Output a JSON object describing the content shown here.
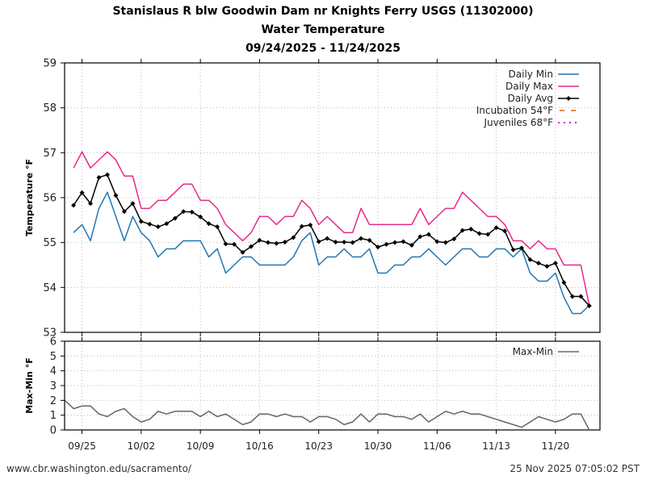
{
  "header": {
    "title_line1": "Stanislaus R blw Goodwin Dam nr Knights Ferry USGS (11302000)",
    "title_line2": "Water Temperature",
    "title_line3": "09/24/2025 - 11/24/2025"
  },
  "footer": {
    "source_url": "www.cbr.washington.edu/sacramento/",
    "timestamp": "25 Nov 2025 07:05:02 PST"
  },
  "colors": {
    "daily_min": "#1f77b4",
    "daily_max": "#e7298a",
    "daily_avg": "#000000",
    "incubation": "#e66101",
    "juveniles": "#c51bce",
    "max_min": "#666666"
  },
  "chart_data": [
    {
      "type": "line",
      "title": "Water Temperature",
      "xlabel": "",
      "ylabel": "Temperature °F",
      "ylim": [
        53,
        59
      ],
      "yticks": [
        "53",
        "54",
        "55",
        "56",
        "57",
        "58",
        "59"
      ],
      "xticks": [
        "09/25",
        "10/02",
        "10/09",
        "10/16",
        "10/23",
        "10/30",
        "11/06",
        "11/13",
        "11/20"
      ],
      "grid": true,
      "legend_position": "top-right",
      "x": [
        "09/24",
        "09/25",
        "09/26",
        "09/27",
        "09/28",
        "09/29",
        "09/30",
        "10/01",
        "10/02",
        "10/03",
        "10/04",
        "10/05",
        "10/06",
        "10/07",
        "10/08",
        "10/09",
        "10/10",
        "10/11",
        "10/12",
        "10/13",
        "10/14",
        "10/15",
        "10/16",
        "10/17",
        "10/18",
        "10/19",
        "10/20",
        "10/21",
        "10/22",
        "10/23",
        "10/24",
        "10/25",
        "10/26",
        "10/27",
        "10/28",
        "10/29",
        "10/30",
        "10/31",
        "11/01",
        "11/02",
        "11/03",
        "11/04",
        "11/05",
        "11/06",
        "11/07",
        "11/08",
        "11/09",
        "11/10",
        "11/11",
        "11/12",
        "11/13",
        "11/14",
        "11/15",
        "11/16",
        "11/17",
        "11/18",
        "11/19",
        "11/20",
        "11/21",
        "11/22",
        "11/23",
        "11/24"
      ],
      "series": [
        {
          "name": "Daily Min",
          "style": "solid",
          "values": [
            55.22,
            55.4,
            55.04,
            55.76,
            56.12,
            55.58,
            55.04,
            55.58,
            55.22,
            55.04,
            54.68,
            54.86,
            54.86,
            55.04,
            55.04,
            55.04,
            54.68,
            54.86,
            54.32,
            54.5,
            54.68,
            54.68,
            54.5,
            54.5,
            54.5,
            54.5,
            54.68,
            55.04,
            55.22,
            54.5,
            54.68,
            54.68,
            54.86,
            54.68,
            54.68,
            54.86,
            54.32,
            54.32,
            54.5,
            54.5,
            54.68,
            54.68,
            54.86,
            54.68,
            54.5,
            54.68,
            54.86,
            54.86,
            54.68,
            54.68,
            54.86,
            54.86,
            54.68,
            54.86,
            54.32,
            54.14,
            54.14,
            54.32,
            53.78,
            53.42,
            53.42,
            53.6
          ]
        },
        {
          "name": "Daily Max",
          "style": "solid",
          "values": [
            56.66,
            57.02,
            56.66,
            56.84,
            57.02,
            56.84,
            56.48,
            56.48,
            55.76,
            55.76,
            55.94,
            55.94,
            56.12,
            56.3,
            56.3,
            55.94,
            55.94,
            55.76,
            55.4,
            55.22,
            55.04,
            55.22,
            55.58,
            55.58,
            55.4,
            55.58,
            55.58,
            55.94,
            55.76,
            55.4,
            55.58,
            55.4,
            55.22,
            55.22,
            55.76,
            55.4,
            55.4,
            55.4,
            55.4,
            55.4,
            55.4,
            55.76,
            55.4,
            55.58,
            55.76,
            55.76,
            56.12,
            55.94,
            55.76,
            55.58,
            55.58,
            55.4,
            55.04,
            55.04,
            54.86,
            55.04,
            54.86,
            54.86,
            54.5,
            54.5,
            54.5,
            53.6
          ]
        },
        {
          "name": "Daily Avg",
          "style": "solid-diamond",
          "values": [
            55.83,
            56.11,
            55.87,
            56.45,
            56.51,
            56.05,
            55.69,
            55.87,
            55.47,
            55.41,
            55.35,
            55.42,
            55.54,
            55.69,
            55.68,
            55.57,
            55.42,
            55.35,
            54.97,
            54.96,
            54.78,
            54.91,
            55.05,
            55.0,
            54.98,
            55.01,
            55.11,
            55.36,
            55.39,
            55.02,
            55.09,
            55.01,
            55.01,
            55.0,
            55.09,
            55.05,
            54.9,
            54.96,
            55.0,
            55.02,
            54.94,
            55.13,
            55.18,
            55.02,
            55.0,
            55.08,
            55.27,
            55.3,
            55.2,
            55.18,
            55.33,
            55.26,
            54.84,
            54.88,
            54.62,
            54.54,
            54.47,
            54.54,
            54.11,
            53.8,
            53.8,
            53.59
          ]
        },
        {
          "name": "Incubation 54°F",
          "style": "dashed",
          "values": []
        },
        {
          "name": "Juveniles 68°F",
          "style": "dotted",
          "values": []
        }
      ]
    },
    {
      "type": "line",
      "title": "",
      "xlabel": "",
      "ylabel": "Max-Min °F",
      "ylim": [
        0,
        6
      ],
      "yticks": [
        "0",
        "1",
        "2",
        "3",
        "4",
        "5",
        "6"
      ],
      "xticks": [
        "09/25",
        "10/02",
        "10/09",
        "10/16",
        "10/23",
        "10/30",
        "11/06",
        "11/13",
        "11/20"
      ],
      "grid": true,
      "legend_position": "top-right",
      "x": [
        "09/23",
        "09/24",
        "09/25",
        "09/26",
        "09/27",
        "09/28",
        "09/29",
        "09/30",
        "10/01",
        "10/02",
        "10/03",
        "10/04",
        "10/05",
        "10/06",
        "10/07",
        "10/08",
        "10/09",
        "10/10",
        "10/11",
        "10/12",
        "10/13",
        "10/14",
        "10/15",
        "10/16",
        "10/17",
        "10/18",
        "10/19",
        "10/20",
        "10/21",
        "10/22",
        "10/23",
        "10/24",
        "10/25",
        "10/26",
        "10/27",
        "10/28",
        "10/29",
        "10/30",
        "10/31",
        "11/01",
        "11/02",
        "11/03",
        "11/04",
        "11/05",
        "11/06",
        "11/07",
        "11/08",
        "11/09",
        "11/10",
        "11/11",
        "11/12",
        "11/13",
        "11/14",
        "11/15",
        "11/16",
        "11/17",
        "11/18",
        "11/19",
        "11/20",
        "11/21",
        "11/22",
        "11/23",
        "11/24"
      ],
      "series": [
        {
          "name": "Max-Min",
          "values": [
            1.98,
            1.44,
            1.62,
            1.62,
            1.08,
            0.9,
            1.26,
            1.44,
            0.9,
            0.54,
            0.72,
            1.26,
            1.08,
            1.26,
            1.26,
            1.26,
            0.9,
            1.26,
            0.9,
            1.08,
            0.72,
            0.36,
            0.54,
            1.08,
            1.08,
            0.9,
            1.08,
            0.9,
            0.9,
            0.54,
            0.9,
            0.9,
            0.72,
            0.36,
            0.54,
            1.08,
            0.54,
            1.08,
            1.08,
            0.9,
            0.9,
            0.72,
            1.08,
            0.54,
            0.9,
            1.26,
            1.08,
            1.26,
            1.08,
            1.08,
            0.9,
            0.72,
            0.54,
            0.36,
            0.18,
            0.54,
            0.9,
            0.72,
            0.54,
            0.72,
            1.08,
            1.08,
            0.0
          ]
        }
      ]
    }
  ]
}
